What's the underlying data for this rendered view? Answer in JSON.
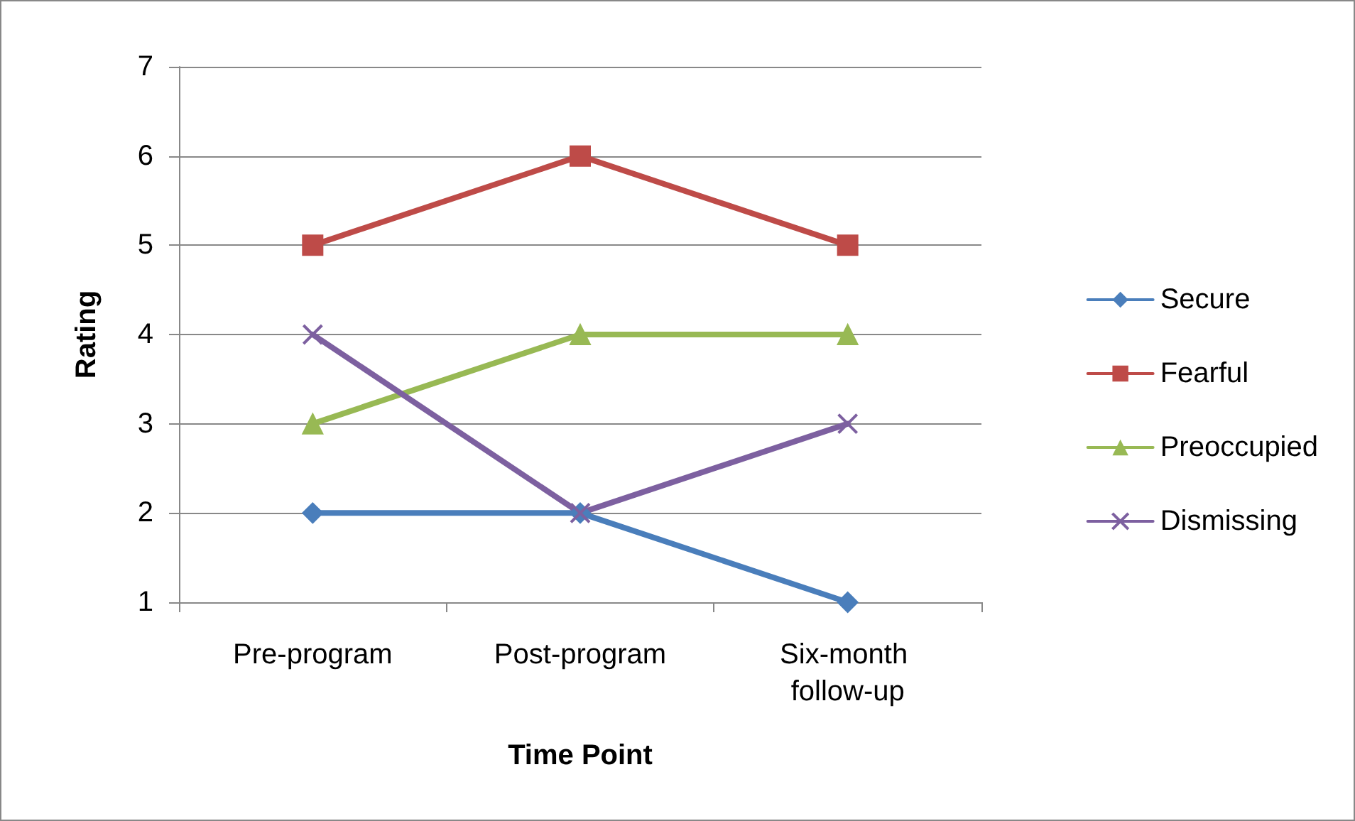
{
  "chart_data": {
    "type": "line",
    "xlabel": "Time Point",
    "ylabel": "Rating",
    "categories": [
      "Pre-program",
      "Post-program",
      "Six-month follow-up"
    ],
    "series": [
      {
        "name": "Secure",
        "color": "#4a7ebb",
        "marker": "diamond",
        "values": [
          2,
          2,
          1
        ]
      },
      {
        "name": "Fearful",
        "color": "#be4b48",
        "marker": "square",
        "values": [
          5,
          6,
          5
        ]
      },
      {
        "name": "Preoccupied",
        "color": "#98b954",
        "marker": "triangle",
        "values": [
          3,
          4,
          4
        ]
      },
      {
        "name": "Dismissing",
        "color": "#7d60a0",
        "marker": "cross",
        "values": [
          4,
          2,
          3
        ]
      }
    ],
    "ylim": [
      1,
      7
    ],
    "yticks": [
      1,
      2,
      3,
      4,
      5,
      6,
      7
    ],
    "grid": "y",
    "legend": "right",
    "line_style": "solid"
  }
}
